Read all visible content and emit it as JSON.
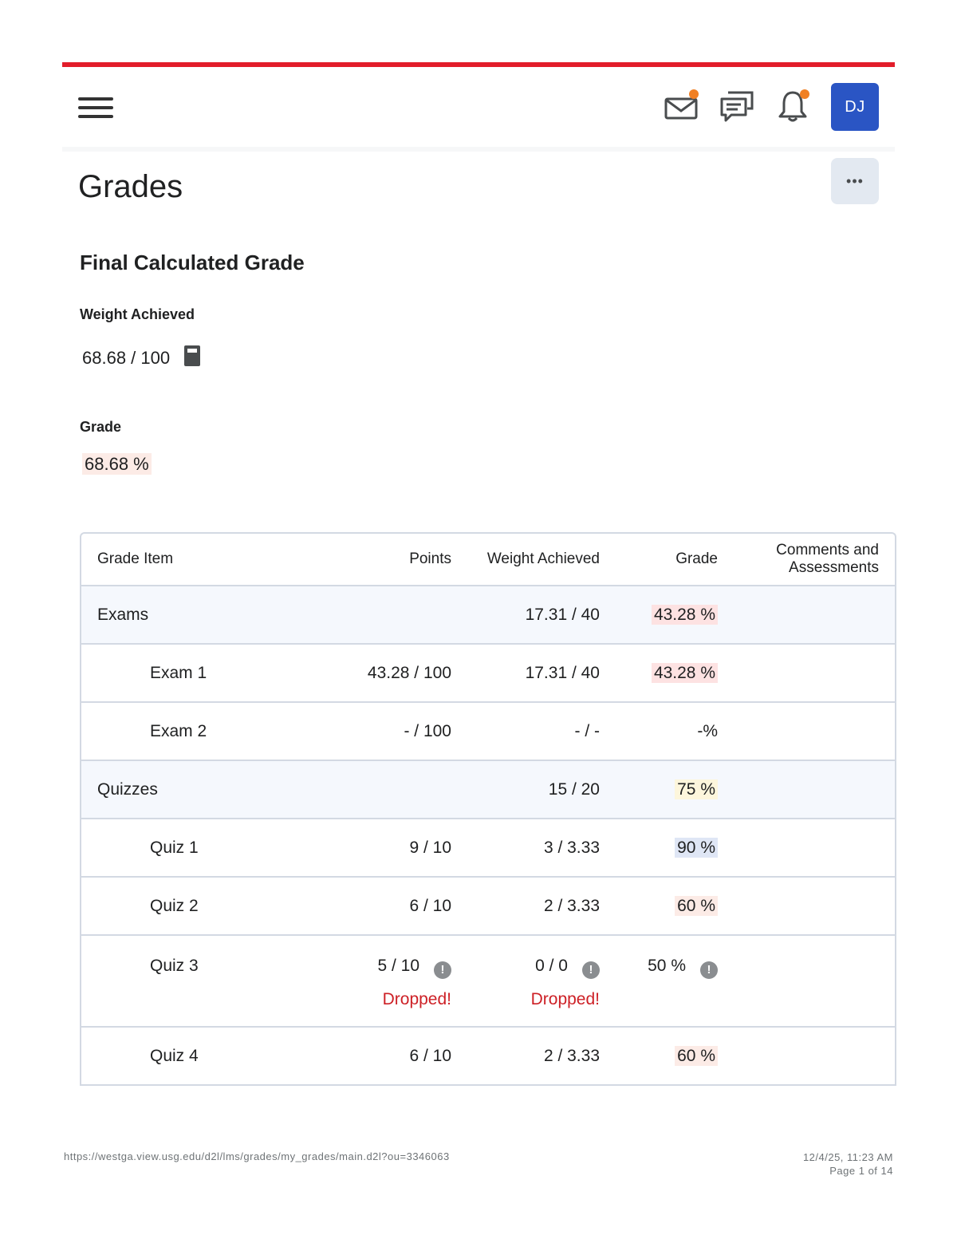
{
  "header": {
    "avatar_initials": "DJ",
    "icons": [
      "hamburger-menu-icon",
      "mail-icon",
      "chat-icon",
      "bell-icon"
    ],
    "accent_color": "#e21d2a",
    "avatar_color": "#2a55c4",
    "notification_dot_color": "#f08024"
  },
  "page": {
    "title": "Grades",
    "more_label": "•••"
  },
  "final_grade": {
    "heading": "Final Calculated Grade",
    "weight_label": "Weight Achieved",
    "weight_value": "68.68 / 100",
    "grade_label": "Grade",
    "grade_value": "68.68 %"
  },
  "table": {
    "headers": {
      "item": "Grade Item",
      "points": "Points",
      "weight": "Weight Achieved",
      "grade": "Grade",
      "comments": "Comments and Assessments"
    },
    "rows": [
      {
        "item": "Exams",
        "points": "",
        "weight": "17.31 / 40",
        "grade": "43.28 %"
      },
      {
        "item": "Exam 1",
        "points": "43.28 / 100",
        "weight": "17.31 / 40",
        "grade": "43.28 %"
      },
      {
        "item": "Exam 2",
        "points": "- / 100",
        "weight": "- / -",
        "grade": "-%"
      },
      {
        "item": "Quizzes",
        "points": "",
        "weight": "15 / 20",
        "grade": "75 %"
      },
      {
        "item": "Quiz 1",
        "points": "9 / 10",
        "weight": "3 / 3.33",
        "grade": "90 %"
      },
      {
        "item": "Quiz 2",
        "points": "6 / 10",
        "weight": "2 / 3.33",
        "grade": "60 %"
      },
      {
        "item": "Quiz 3",
        "points": "5 / 10",
        "weight": "0 / 0",
        "grade": "50 %",
        "points_note": "Dropped!",
        "weight_note": "Dropped!",
        "warn_glyph": "!"
      },
      {
        "item": "Quiz 4",
        "points": "6 / 10",
        "weight": "2 / 3.33",
        "grade": "60 %"
      }
    ]
  },
  "footer": {
    "url": "https://westga.view.usg.edu/d2l/lms/grades/my_grades/main.d2l?ou=3346063",
    "datetime": "12/4/25, 11:23 AM",
    "page": "Page 1 of 14"
  }
}
